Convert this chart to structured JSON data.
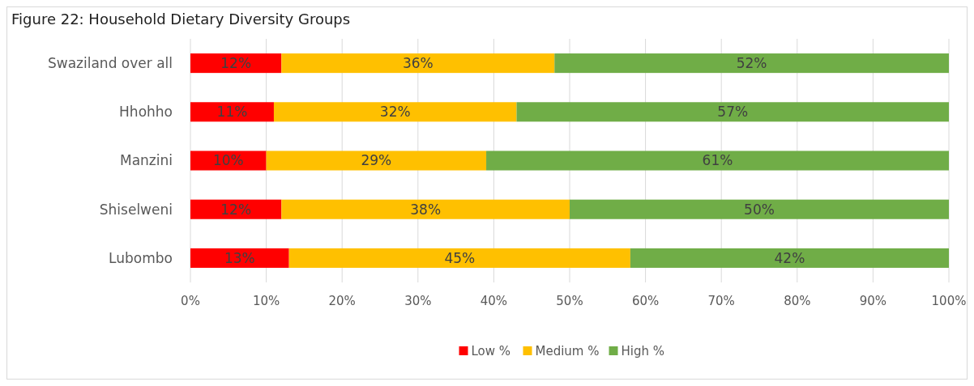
{
  "chart_data": {
    "type": "bar",
    "title": "Figure 22: Household Dietary Diversity Groups",
    "orientation": "horizontal",
    "stacked": true,
    "categories": [
      "Swaziland over all",
      "Hhohho",
      "Manzini",
      "Shiselweni",
      "Lubombo"
    ],
    "series": [
      {
        "name": "Low %",
        "color": "#ff0000",
        "values": [
          12,
          11,
          10,
          12,
          13
        ],
        "value_labels": [
          "12%",
          "11%",
          "10%",
          "12%",
          "13%"
        ]
      },
      {
        "name": "Medium %",
        "color": "#ffc000",
        "values": [
          36,
          32,
          29,
          38,
          45
        ],
        "value_labels": [
          "36%",
          "32%",
          "29%",
          "38%",
          "45%"
        ]
      },
      {
        "name": "High %",
        "color": "#70ad47",
        "values": [
          52,
          57,
          61,
          50,
          42
        ],
        "value_labels": [
          "52%",
          "57%",
          "61%",
          "50%",
          "42%"
        ]
      }
    ],
    "xlim": [
      0,
      100
    ],
    "xticks": [
      {
        "value": 0,
        "label": "0%"
      },
      {
        "value": 10,
        "label": "10%"
      },
      {
        "value": 20,
        "label": "20%"
      },
      {
        "value": 30,
        "label": "30%"
      },
      {
        "value": 40,
        "label": "40%"
      },
      {
        "value": 50,
        "label": "50%"
      },
      {
        "value": 60,
        "label": "60%"
      },
      {
        "value": 70,
        "label": "70%"
      },
      {
        "value": 80,
        "label": "80%"
      },
      {
        "value": 90,
        "label": "90%"
      },
      {
        "value": 100,
        "label": "100%"
      }
    ],
    "grid": "x",
    "legend": "bottom"
  }
}
